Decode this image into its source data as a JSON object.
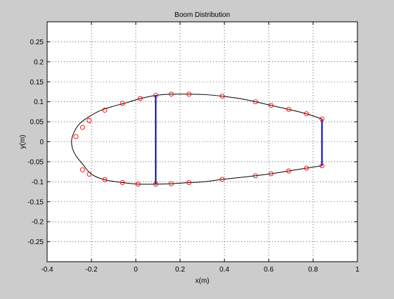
{
  "chart_data": {
    "type": "line",
    "title": "Boom Distribution",
    "xlabel": "x(m)",
    "ylabel": "y(m)",
    "xlim": [
      -0.4,
      1.0
    ],
    "ylim": [
      -0.3,
      0.3
    ],
    "xticks": [
      -0.4,
      -0.2,
      0,
      0.2,
      0.4,
      0.6,
      0.8,
      1
    ],
    "xtick_labels": [
      "-0.4",
      "-0.2",
      "0",
      "0.2",
      "0.4",
      "0.6",
      "0.8",
      "1"
    ],
    "yticks": [
      -0.25,
      -0.2,
      -0.15,
      -0.1,
      -0.05,
      0,
      0.05,
      0.1,
      0.15,
      0.2,
      0.25
    ],
    "ytick_labels": [
      "-0.25",
      "-0.2",
      "-0.15",
      "-0.1",
      "-0.05",
      "0",
      "0.05",
      "0.1",
      "0.15",
      "0.2",
      "0.25"
    ],
    "grid": true,
    "colors": {
      "figure_background": "#cccccc",
      "axes_background": "#ffffff",
      "profile": "#000000",
      "booms": "#ff0000",
      "spars": "#0000cc",
      "grid": "#000000"
    },
    "series": [
      {
        "type": "line",
        "x": [
          0.84,
          0.77,
          0.69,
          0.61,
          0.54,
          0.47,
          0.39,
          0.31,
          0.24,
          0.16,
          0.09,
          0.02,
          -0.04,
          -0.1,
          -0.16,
          -0.21,
          -0.25,
          -0.27,
          -0.285,
          -0.29,
          -0.285,
          -0.27,
          -0.24,
          -0.2,
          -0.14,
          -0.06,
          0.01,
          0.09,
          0.16,
          0.24,
          0.31,
          0.39,
          0.46,
          0.54,
          0.61,
          0.69,
          0.77,
          0.84
        ],
        "y": [
          0.057,
          0.07,
          0.081,
          0.091,
          0.1,
          0.108,
          0.114,
          0.118,
          0.119,
          0.119,
          0.116,
          0.108,
          0.098,
          0.089,
          0.078,
          0.063,
          0.047,
          0.033,
          0.015,
          0.0,
          -0.018,
          -0.035,
          -0.056,
          -0.081,
          -0.095,
          -0.102,
          -0.106,
          -0.106,
          -0.105,
          -0.102,
          -0.1,
          -0.094,
          -0.09,
          -0.085,
          -0.08,
          -0.073,
          -0.066,
          -0.06
        ]
      },
      {
        "type": "scatter",
        "x": [
          0.84,
          0.77,
          0.69,
          0.61,
          0.54,
          0.39,
          0.24,
          0.16,
          0.09,
          0.02,
          -0.06,
          -0.14,
          -0.21,
          -0.24,
          -0.27,
          -0.24,
          -0.21,
          -0.14,
          -0.06,
          0.01,
          0.09,
          0.16,
          0.24,
          0.39,
          0.54,
          0.61,
          0.69,
          0.77,
          0.84
        ],
        "y": [
          0.057,
          0.07,
          0.081,
          0.091,
          0.1,
          0.114,
          0.119,
          0.119,
          0.116,
          0.108,
          0.096,
          0.079,
          0.053,
          0.036,
          0.013,
          -0.07,
          -0.081,
          -0.095,
          -0.102,
          -0.106,
          -0.106,
          -0.105,
          -0.102,
          -0.094,
          -0.085,
          -0.08,
          -0.073,
          -0.066,
          -0.06
        ]
      },
      {
        "type": "line",
        "x": [
          0.09,
          0.09
        ],
        "y": [
          0.116,
          -0.106
        ]
      },
      {
        "type": "line",
        "x": [
          0.84,
          0.84
        ],
        "y": [
          0.057,
          -0.06
        ]
      }
    ]
  }
}
